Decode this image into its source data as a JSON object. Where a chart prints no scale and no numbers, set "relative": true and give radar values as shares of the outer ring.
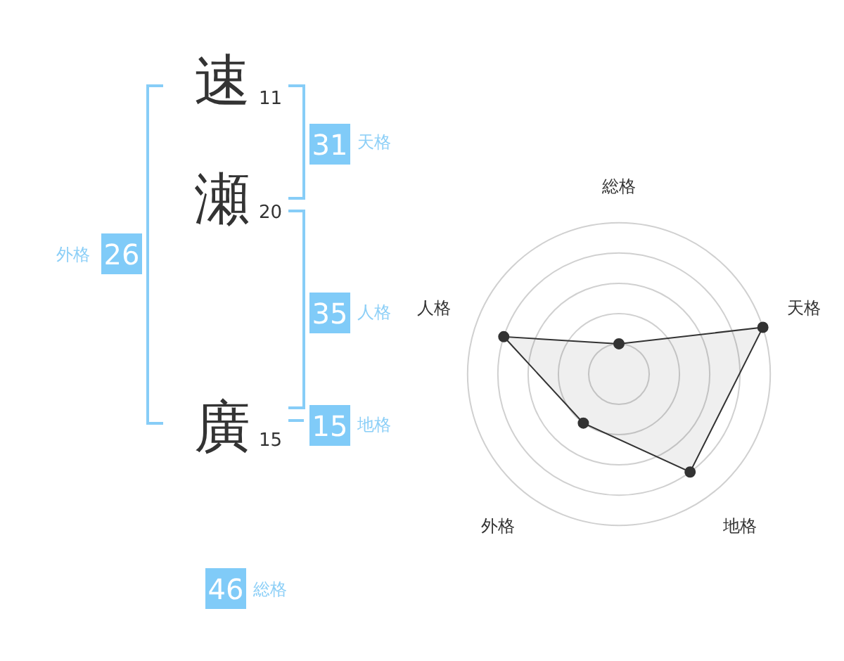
{
  "chart_data": [
    {
      "type": "other",
      "annotations": [
        "速",
        "11",
        "瀬",
        "20",
        "廣",
        "15",
        "31",
        "天格",
        "35",
        "人格",
        "15",
        "地格",
        "26",
        "外格",
        "46",
        "総格"
      ]
    },
    {
      "type": "radar",
      "relative": true,
      "categories": [
        "総格",
        "天格",
        "地格",
        "外格",
        "人格"
      ],
      "series": [
        {
          "color": "#333333",
          "values": [
            0.2,
            1.0,
            0.8,
            0.4,
            0.8
          ]
        }
      ],
      "marker": "circle",
      "legend": false
    }
  ]
}
